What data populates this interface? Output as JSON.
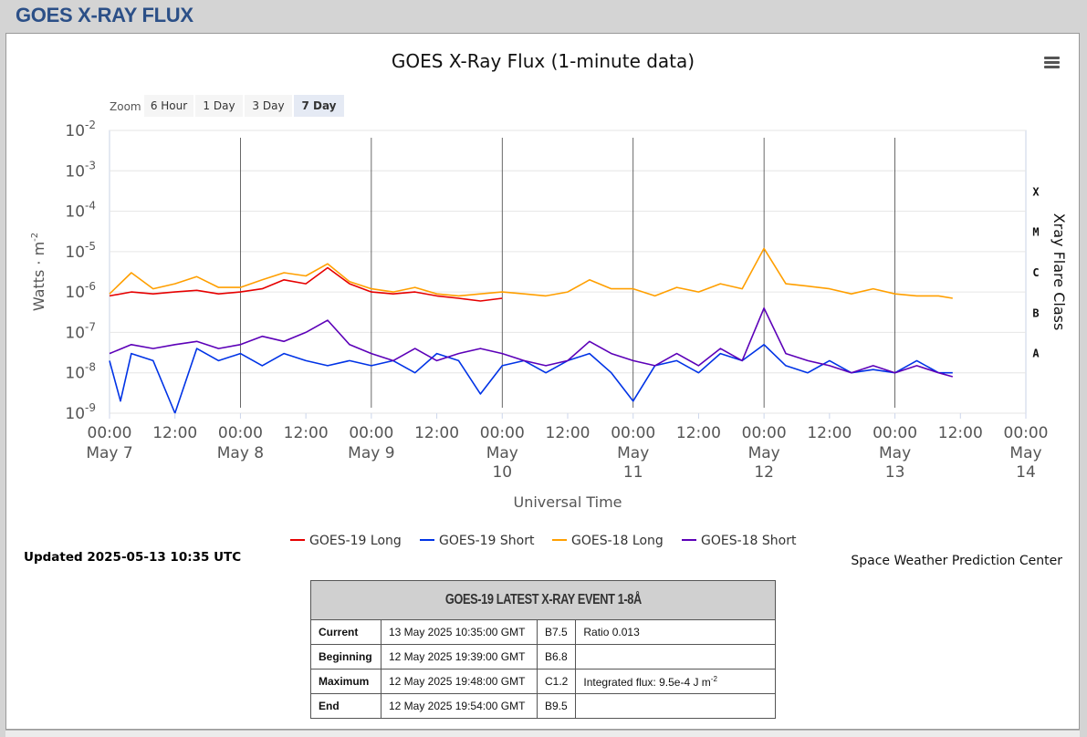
{
  "page": {
    "title": "GOES X-RAY FLUX"
  },
  "colors": {
    "goes19_long": "#e60000",
    "goes19_short": "#0033e6",
    "goes18_long": "#ff9f00",
    "goes18_short": "#5c00b8"
  },
  "zoom": {
    "label": "Zoom",
    "buttons": [
      "6 Hour",
      "1 Day",
      "3 Day",
      "7 Day"
    ],
    "active": "7 Day"
  },
  "menu": {
    "icon": "hamburger-menu-icon"
  },
  "chart_data": {
    "type": "line",
    "title": "GOES X-Ray Flux (1-minute data)",
    "xlabel": "Universal Time",
    "ylabel": "Watts · m",
    "ylabel_exponent": "-2",
    "y2label": "Xray Flare Class",
    "y_scale": "log",
    "ylim": [
      1e-09,
      0.01
    ],
    "y_ticks": [
      {
        "base": "10",
        "exp": "-9"
      },
      {
        "base": "10",
        "exp": "-8"
      },
      {
        "base": "10",
        "exp": "-7"
      },
      {
        "base": "10",
        "exp": "-6"
      },
      {
        "base": "10",
        "exp": "-5"
      },
      {
        "base": "10",
        "exp": "-4"
      },
      {
        "base": "10",
        "exp": "-3"
      },
      {
        "base": "10",
        "exp": "-2"
      }
    ],
    "flare_classes": [
      "A",
      "B",
      "C",
      "M",
      "X"
    ],
    "xlim": [
      "2025-05-07 00:00",
      "2025-05-14 00:00"
    ],
    "x_ticks": [
      {
        "time": "00:00",
        "date": [
          "May 7"
        ]
      },
      {
        "time": "12:00",
        "date": []
      },
      {
        "time": "00:00",
        "date": [
          "May 8"
        ]
      },
      {
        "time": "12:00",
        "date": []
      },
      {
        "time": "00:00",
        "date": [
          "May 9"
        ]
      },
      {
        "time": "12:00",
        "date": []
      },
      {
        "time": "00:00",
        "date": [
          "May",
          "10"
        ]
      },
      {
        "time": "12:00",
        "date": []
      },
      {
        "time": "00:00",
        "date": [
          "May",
          "11"
        ]
      },
      {
        "time": "12:00",
        "date": []
      },
      {
        "time": "00:00",
        "date": [
          "May",
          "12"
        ]
      },
      {
        "time": "12:00",
        "date": []
      },
      {
        "time": "00:00",
        "date": [
          "May",
          "13"
        ]
      },
      {
        "time": "12:00",
        "date": []
      },
      {
        "time": "00:00",
        "date": [
          "May",
          "14"
        ]
      }
    ],
    "series": [
      {
        "name": "GOES-19 Long",
        "x": [
          "2025-05-07 00:00",
          "2025-05-07 04:00",
          "2025-05-07 08:00",
          "2025-05-07 12:00",
          "2025-05-07 16:00",
          "2025-05-07 20:00",
          "2025-05-08 00:00",
          "2025-05-08 04:00",
          "2025-05-08 08:00",
          "2025-05-08 12:00",
          "2025-05-08 16:00",
          "2025-05-08 20:00",
          "2025-05-09 00:00",
          "2025-05-09 04:00",
          "2025-05-09 08:00",
          "2025-05-09 12:00",
          "2025-05-09 16:00",
          "2025-05-09 20:00",
          "2025-05-10 00:00"
        ],
        "y": [
          8e-07,
          1e-06,
          9e-07,
          1e-06,
          1.1e-06,
          9e-07,
          1e-06,
          1.2e-06,
          2e-06,
          1.6e-06,
          4e-06,
          1.6e-06,
          1e-06,
          9e-07,
          1e-06,
          8e-07,
          7e-07,
          6e-07,
          7e-07
        ]
      },
      {
        "name": "GOES-19 Short",
        "x": [
          "2025-05-07 00:00",
          "2025-05-07 02:00",
          "2025-05-07 04:00",
          "2025-05-07 08:00",
          "2025-05-07 12:00",
          "2025-05-07 16:00",
          "2025-05-07 20:00",
          "2025-05-08 00:00",
          "2025-05-08 04:00",
          "2025-05-08 08:00",
          "2025-05-08 12:00",
          "2025-05-08 16:00",
          "2025-05-08 20:00",
          "2025-05-09 00:00",
          "2025-05-09 04:00",
          "2025-05-09 08:00",
          "2025-05-09 12:00",
          "2025-05-09 16:00",
          "2025-05-09 20:00",
          "2025-05-10 00:00",
          "2025-05-10 04:00",
          "2025-05-10 08:00",
          "2025-05-10 12:00",
          "2025-05-10 16:00",
          "2025-05-10 20:00",
          "2025-05-11 00:00",
          "2025-05-11 04:00",
          "2025-05-11 08:00",
          "2025-05-11 12:00",
          "2025-05-11 16:00",
          "2025-05-11 20:00",
          "2025-05-12 00:00",
          "2025-05-12 04:00",
          "2025-05-12 08:00",
          "2025-05-12 12:00",
          "2025-05-12 16:00",
          "2025-05-12 20:00",
          "2025-05-13 00:00",
          "2025-05-13 04:00",
          "2025-05-13 08:00",
          "2025-05-13 10:35"
        ],
        "y": [
          2e-08,
          2e-09,
          3e-08,
          2e-08,
          1e-09,
          4e-08,
          2e-08,
          3e-08,
          1.5e-08,
          3e-08,
          2e-08,
          1.5e-08,
          2e-08,
          1.5e-08,
          2e-08,
          1e-08,
          3e-08,
          2e-08,
          3e-09,
          1.5e-08,
          2e-08,
          1e-08,
          2e-08,
          3e-08,
          1e-08,
          2e-09,
          1.5e-08,
          2e-08,
          1e-08,
          3e-08,
          2e-08,
          5e-08,
          1.5e-08,
          1e-08,
          2e-08,
          1e-08,
          1.2e-08,
          1e-08,
          2e-08,
          1e-08,
          1e-08
        ]
      },
      {
        "name": "GOES-18 Long",
        "x": [
          "2025-05-07 00:00",
          "2025-05-07 04:00",
          "2025-05-07 08:00",
          "2025-05-07 12:00",
          "2025-05-07 16:00",
          "2025-05-07 20:00",
          "2025-05-08 00:00",
          "2025-05-08 04:00",
          "2025-05-08 08:00",
          "2025-05-08 12:00",
          "2025-05-08 16:00",
          "2025-05-08 20:00",
          "2025-05-09 00:00",
          "2025-05-09 04:00",
          "2025-05-09 08:00",
          "2025-05-09 12:00",
          "2025-05-09 16:00",
          "2025-05-09 20:00",
          "2025-05-10 00:00",
          "2025-05-10 04:00",
          "2025-05-10 08:00",
          "2025-05-10 12:00",
          "2025-05-10 16:00",
          "2025-05-10 20:00",
          "2025-05-11 00:00",
          "2025-05-11 04:00",
          "2025-05-11 08:00",
          "2025-05-11 12:00",
          "2025-05-11 16:00",
          "2025-05-11 20:00",
          "2025-05-12 00:00",
          "2025-05-12 04:00",
          "2025-05-12 08:00",
          "2025-05-12 12:00",
          "2025-05-12 16:00",
          "2025-05-12 20:00",
          "2025-05-13 00:00",
          "2025-05-13 04:00",
          "2025-05-13 08:00",
          "2025-05-13 10:35"
        ],
        "y": [
          9e-07,
          3e-06,
          1.2e-06,
          1.6e-06,
          2.4e-06,
          1.3e-06,
          1.3e-06,
          2e-06,
          3e-06,
          2.5e-06,
          5e-06,
          1.8e-06,
          1.2e-06,
          1e-06,
          1.3e-06,
          9e-07,
          8e-07,
          9e-07,
          1e-06,
          9e-07,
          8e-07,
          1e-06,
          2e-06,
          1.2e-06,
          1.2e-06,
          8e-07,
          1.3e-06,
          1e-06,
          1.6e-06,
          1.2e-06,
          1.2e-05,
          1.6e-06,
          1.4e-06,
          1.2e-06,
          9e-07,
          1.2e-06,
          9e-07,
          8e-07,
          8e-07,
          7e-07
        ]
      },
      {
        "name": "GOES-18 Short",
        "x": [
          "2025-05-07 00:00",
          "2025-05-07 04:00",
          "2025-05-07 08:00",
          "2025-05-07 12:00",
          "2025-05-07 16:00",
          "2025-05-07 20:00",
          "2025-05-08 00:00",
          "2025-05-08 04:00",
          "2025-05-08 08:00",
          "2025-05-08 12:00",
          "2025-05-08 16:00",
          "2025-05-08 20:00",
          "2025-05-09 00:00",
          "2025-05-09 04:00",
          "2025-05-09 08:00",
          "2025-05-09 12:00",
          "2025-05-09 16:00",
          "2025-05-09 20:00",
          "2025-05-10 00:00",
          "2025-05-10 04:00",
          "2025-05-10 08:00",
          "2025-05-10 12:00",
          "2025-05-10 16:00",
          "2025-05-10 20:00",
          "2025-05-11 00:00",
          "2025-05-11 04:00",
          "2025-05-11 08:00",
          "2025-05-11 12:00",
          "2025-05-11 16:00",
          "2025-05-11 20:00",
          "2025-05-12 00:00",
          "2025-05-12 04:00",
          "2025-05-12 08:00",
          "2025-05-12 12:00",
          "2025-05-12 16:00",
          "2025-05-12 20:00",
          "2025-05-13 00:00",
          "2025-05-13 04:00",
          "2025-05-13 08:00",
          "2025-05-13 10:35"
        ],
        "y": [
          3e-08,
          5e-08,
          4e-08,
          5e-08,
          6e-08,
          4e-08,
          5e-08,
          8e-08,
          6e-08,
          1e-07,
          2e-07,
          5e-08,
          3e-08,
          2e-08,
          4e-08,
          2e-08,
          3e-08,
          4e-08,
          3e-08,
          2e-08,
          1.5e-08,
          2e-08,
          6e-08,
          3e-08,
          2e-08,
          1.5e-08,
          3e-08,
          1.5e-08,
          4e-08,
          2e-08,
          4e-07,
          3e-08,
          2e-08,
          1.5e-08,
          1e-08,
          1.5e-08,
          1e-08,
          1.5e-08,
          1e-08,
          8e-09
        ]
      }
    ],
    "legend_placement": "bottom-center"
  },
  "footer": {
    "updated": "Updated 2025-05-13 10:35 UTC",
    "credit": "Space Weather Prediction Center"
  },
  "event": {
    "title": "GOES-19 LATEST X-RAY EVENT 1-8Å",
    "rows": [
      {
        "label": "Current",
        "time": "13 May 2025 10:35:00 GMT",
        "class": "B7.5",
        "extra": "Ratio 0.013"
      },
      {
        "label": "Beginning",
        "time": "12 May 2025 19:39:00 GMT",
        "class": "B6.8",
        "extra": ""
      },
      {
        "label": "Maximum",
        "time": "12 May 2025 19:48:00 GMT",
        "class": "C1.2",
        "extra": "Integrated flux: 9.5e-4 J m",
        "extra_sup": "-2"
      },
      {
        "label": "End",
        "time": "12 May 2025 19:54:00 GMT",
        "class": "B9.5",
        "extra": ""
      }
    ]
  }
}
